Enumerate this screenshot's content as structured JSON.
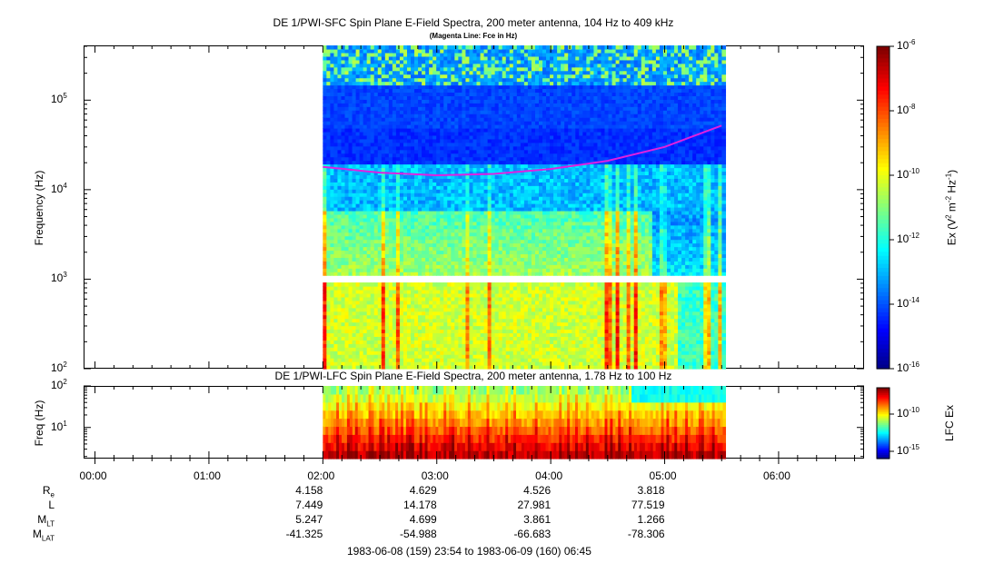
{
  "chart_data": [
    {
      "type": "heatmap",
      "title": "DE 1/PWI-SFC  Spin Plane E-Field Spectra, 200 meter antenna, 104 Hz to 409 kHz",
      "subtitle": "(Magenta Line: Fce in Hz)",
      "ylabel": "Frequency (Hz)",
      "yscale": "log",
      "ylim": [
        100,
        409000
      ],
      "yticks": [
        {
          "base": "10",
          "exp": "2"
        },
        {
          "base": "10",
          "exp": "3"
        },
        {
          "base": "10",
          "exp": "4"
        },
        {
          "base": "10",
          "exp": "5"
        }
      ],
      "colorbar": {
        "label": "Ex (V2 m-2 Hz-1)",
        "scale": "log",
        "range": [
          1e-16,
          1e-06
        ],
        "ticks": [
          {
            "base": "10",
            "exp": "-6"
          },
          {
            "base": "10",
            "exp": "-8"
          },
          {
            "base": "10",
            "exp": "-10"
          },
          {
            "base": "10",
            "exp": "-12"
          },
          {
            "base": "10",
            "exp": "-14"
          },
          {
            "base": "10",
            "exp": "-16"
          }
        ]
      },
      "data_time_range": [
        "02:00",
        "05:32"
      ],
      "fce_line": {
        "color": "#e020e0",
        "points": [
          {
            "t": 2.0,
            "f": 18000
          },
          {
            "t": 2.5,
            "f": 15500
          },
          {
            "t": 3.0,
            "f": 14500
          },
          {
            "t": 3.5,
            "f": 15000
          },
          {
            "t": 4.0,
            "f": 17000
          },
          {
            "t": 4.5,
            "f": 21000
          },
          {
            "t": 5.0,
            "f": 30000
          },
          {
            "t": 5.5,
            "f": 52000
          }
        ]
      }
    },
    {
      "type": "heatmap",
      "title": "DE 1/PWI-LFC  Spin Plane E-Field Spectra, 200 meter antenna, 1.78 Hz to 100 Hz",
      "ylabel": "Freq (Hz)",
      "yscale": "log",
      "ylim": [
        1.78,
        100
      ],
      "yticks": [
        {
          "base": "10",
          "exp": "1"
        },
        {
          "base": "10",
          "exp": "2"
        }
      ],
      "colorbar": {
        "label": "LFC Ex",
        "scale": "log",
        "ticks": [
          {
            "base": "10",
            "exp": "-10"
          },
          {
            "base": "10",
            "exp": "-15"
          }
        ]
      },
      "data_time_range": [
        "02:00",
        "05:32"
      ]
    }
  ],
  "xaxis": {
    "ticks": [
      "00:00",
      "01:00",
      "02:00",
      "03:00",
      "04:00",
      "05:00",
      "06:00"
    ],
    "range_hours": [
      -0.1,
      6.75
    ]
  },
  "ephemeris": {
    "rows": [
      {
        "label": "R",
        "sub": "e",
        "values": [
          "4.158",
          "4.629",
          "4.526",
          "3.818"
        ]
      },
      {
        "label": "L",
        "sub": "",
        "values": [
          "7.449",
          "14.178",
          "27.981",
          "77.519"
        ]
      },
      {
        "label": "M",
        "sub": "LT",
        "values": [
          "5.247",
          "4.699",
          "3.861",
          "1.266"
        ]
      },
      {
        "label": "M",
        "sub": "LAT",
        "values": [
          "-41.325",
          "-54.988",
          "-66.683",
          "-78.306"
        ]
      }
    ],
    "tick_hours": [
      2,
      3,
      4,
      5
    ]
  },
  "footer": "1983-06-08 (159) 23:54 to 1983-06-09 (160) 06:45"
}
